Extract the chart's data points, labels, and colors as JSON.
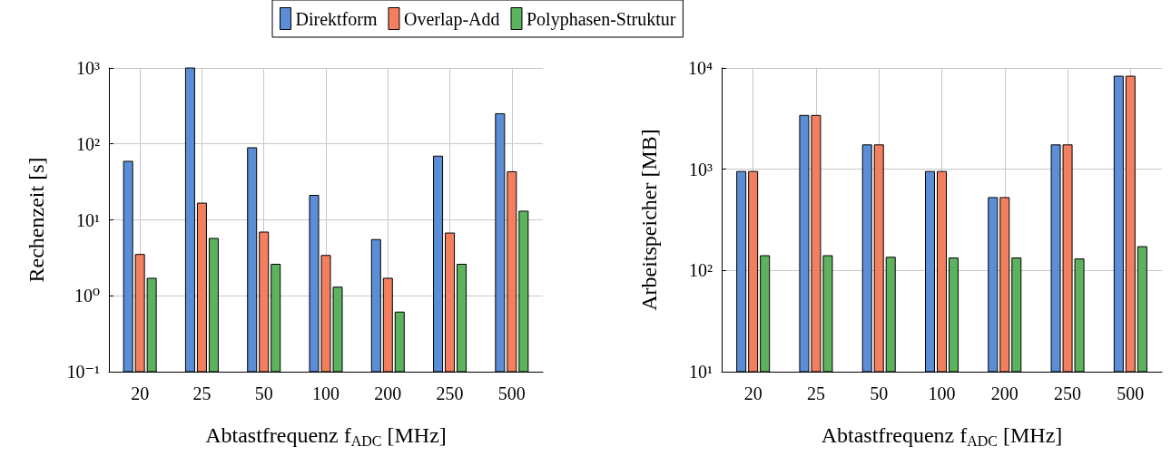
{
  "chart_data": [
    {
      "type": "bar",
      "xlabel": "Abtastfrequenz f$_{ADC}$ [MHz]",
      "ylabel": "Rechenzeit [s]",
      "categories": [
        "20",
        "25",
        "50",
        "100",
        "200",
        "250",
        "500"
      ],
      "series": [
        {
          "name": "Direktform",
          "color": "#5b8ed6",
          "values": [
            59,
            1000,
            89,
            21,
            5.5,
            69,
            250
          ]
        },
        {
          "name": "Overlap-Add",
          "color": "#f47f5f",
          "values": [
            3.5,
            16.6,
            6.9,
            3.4,
            1.7,
            6.7,
            43
          ]
        },
        {
          "name": "Polyphasen-Struktur",
          "color": "#5db25d",
          "values": [
            1.7,
            5.7,
            2.6,
            1.3,
            0.61,
            2.6,
            13
          ]
        }
      ],
      "log": "y",
      "ylim": [
        0.1,
        1000
      ],
      "yticks": [
        {
          "value": 0.1,
          "label": "10⁻¹"
        },
        {
          "value": 1,
          "label": "10⁰"
        },
        {
          "value": 10,
          "label": "10¹"
        },
        {
          "value": 100,
          "label": "10²"
        },
        {
          "value": 1000,
          "label": "10³"
        }
      ],
      "grid": true,
      "legend": "top"
    },
    {
      "type": "bar",
      "xlabel": "Abtastfrequenz f$_{ADC}$ [MHz]",
      "ylabel": "Arbeitspeicher [MB]",
      "categories": [
        "20",
        "25",
        "50",
        "100",
        "200",
        "250",
        "500"
      ],
      "series": [
        {
          "color": "#5b8ed6",
          "values": [
            950,
            3400,
            1740,
            950,
            525,
            1740,
            8300
          ]
        },
        {
          "color": "#f47f5f",
          "values": [
            950,
            3400,
            1740,
            950,
            525,
            1740,
            8300
          ]
        },
        {
          "color": "#5db25d",
          "values": [
            140,
            140,
            135,
            133,
            133,
            130,
            172
          ]
        }
      ],
      "log": "y",
      "ylim": [
        10,
        10000
      ],
      "yticks": [
        {
          "value": 10,
          "label": "10¹"
        },
        {
          "value": 100,
          "label": "10²"
        },
        {
          "value": 1000,
          "label": "10³"
        },
        {
          "value": 10000,
          "label": "10⁴"
        }
      ],
      "grid": true,
      "legend": false
    }
  ]
}
